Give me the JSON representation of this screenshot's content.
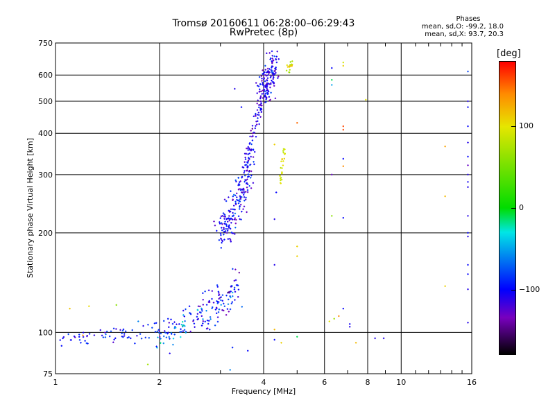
{
  "header": {
    "title_line1": "Tromsø 20160611 06:28:00–06:29:43",
    "title_line2": "RwPretec (8p)"
  },
  "stats": {
    "heading": "Phases",
    "line_o": "mean, sd,O: -99.2, 18.0",
    "line_x": "mean, sd,X:  93.7, 20.3"
  },
  "colorbar": {
    "unit": "[deg]",
    "range": [
      -180,
      180
    ],
    "ticks": [
      {
        "value": 100,
        "label": "100"
      },
      {
        "value": 0,
        "label": "0"
      },
      {
        "value": -100,
        "label": "−100"
      }
    ]
  },
  "chart_data": {
    "type": "scatter",
    "title": "Tromsø 20160611 06:28:00–06:29:43",
    "subtitle": "RwPretec (8p)",
    "xlabel": "Frequency [MHz]",
    "ylabel": "Stationary phase Virtual Height [km]",
    "x_scale": "log",
    "y_scale": "log",
    "xlim": [
      1,
      16
    ],
    "ylim": [
      75,
      750
    ],
    "x_ticks": [
      1,
      2,
      4,
      6,
      8,
      10,
      16
    ],
    "x_tick_labels": [
      "1",
      "2",
      "4",
      "6",
      "8",
      "10",
      "16"
    ],
    "x_minor_ticks": [
      3,
      5,
      7,
      9,
      11,
      12,
      13,
      14,
      15
    ],
    "y_ticks": [
      75,
      100,
      200,
      300,
      400,
      500,
      600,
      750
    ],
    "y_tick_labels": [
      "75",
      "100",
      "200",
      "300",
      "400",
      "500",
      "600",
      "750"
    ],
    "grid": true,
    "color_value": "phase [deg]",
    "segments": [
      {
        "f0": 1.0,
        "f1": 1.95,
        "h0": 95,
        "h1": 102,
        "n": 60,
        "jitter_h": 0.03,
        "jitter_f": 0.01,
        "phase_mean": -95,
        "phase_sd": 15
      },
      {
        "f0": 1.95,
        "f1": 2.6,
        "h0": 98,
        "h1": 112,
        "n": 70,
        "jitter_h": 0.05,
        "jitter_f": 0.01,
        "phase_mean": -80,
        "phase_sd": 30
      },
      {
        "f0": 2.6,
        "f1": 3.4,
        "h0": 110,
        "h1": 140,
        "n": 110,
        "jitter_h": 0.07,
        "jitter_f": 0.015,
        "phase_mean": -100,
        "phase_sd": 25
      },
      {
        "f0": 3.0,
        "f1": 3.7,
        "h0": 200,
        "h1": 330,
        "n": 200,
        "jitter_h": 0.07,
        "jitter_f": 0.02,
        "phase_mean": -105,
        "phase_sd": 18
      },
      {
        "f0": 3.55,
        "f1": 3.95,
        "h0": 330,
        "h1": 520,
        "n": 70,
        "jitter_h": 0.04,
        "jitter_f": 0.01,
        "phase_mean": -110,
        "phase_sd": 15
      },
      {
        "f0": 3.92,
        "f1": 4.3,
        "h0": 520,
        "h1": 650,
        "n": 150,
        "jitter_h": 0.06,
        "jitter_f": 0.02,
        "phase_mean": -108,
        "phase_sd": 18
      },
      {
        "f0": 4.45,
        "f1": 4.6,
        "h0": 285,
        "h1": 360,
        "n": 28,
        "jitter_h": 0.02,
        "jitter_f": 0.005,
        "phase_mean": 95,
        "phase_sd": 12
      },
      {
        "f0": 4.7,
        "f1": 4.85,
        "h0": 625,
        "h1": 655,
        "n": 16,
        "jitter_h": 0.015,
        "jitter_f": 0.008,
        "phase_mean": 100,
        "phase_sd": 25
      }
    ],
    "scattered_points": [
      {
        "x": 3.3,
        "y": 545,
        "phase": -110
      },
      {
        "x": 3.45,
        "y": 480,
        "phase": -100
      },
      {
        "x": 3.25,
        "y": 90,
        "phase": -90
      },
      {
        "x": 3.6,
        "y": 88,
        "phase": -100
      },
      {
        "x": 3.2,
        "y": 77,
        "phase": -60
      },
      {
        "x": 4.3,
        "y": 370,
        "phase": 110
      },
      {
        "x": 4.35,
        "y": 265,
        "phase": -100
      },
      {
        "x": 4.3,
        "y": 220,
        "phase": -110
      },
      {
        "x": 4.3,
        "y": 160,
        "phase": -110
      },
      {
        "x": 4.3,
        "y": 102,
        "phase": 120
      },
      {
        "x": 4.3,
        "y": 95,
        "phase": -100
      },
      {
        "x": 4.5,
        "y": 93,
        "phase": 110
      },
      {
        "x": 5.0,
        "y": 430,
        "phase": 150
      },
      {
        "x": 5.0,
        "y": 182,
        "phase": 110
      },
      {
        "x": 5.0,
        "y": 170,
        "phase": 110
      },
      {
        "x": 5.0,
        "y": 97,
        "phase": -10
      },
      {
        "x": 6.3,
        "y": 630,
        "phase": -100
      },
      {
        "x": 6.3,
        "y": 580,
        "phase": -10
      },
      {
        "x": 6.3,
        "y": 560,
        "phase": -50
      },
      {
        "x": 6.3,
        "y": 300,
        "phase": -130
      },
      {
        "x": 6.3,
        "y": 225,
        "phase": 60
      },
      {
        "x": 6.2,
        "y": 108,
        "phase": 100
      },
      {
        "x": 6.4,
        "y": 110,
        "phase": 70
      },
      {
        "x": 6.6,
        "y": 112,
        "phase": 140
      },
      {
        "x": 6.8,
        "y": 655,
        "phase": 90
      },
      {
        "x": 6.8,
        "y": 640,
        "phase": 110
      },
      {
        "x": 6.8,
        "y": 420,
        "phase": 160
      },
      {
        "x": 6.8,
        "y": 410,
        "phase": 160
      },
      {
        "x": 6.8,
        "y": 335,
        "phase": -100
      },
      {
        "x": 6.8,
        "y": 318,
        "phase": 140
      },
      {
        "x": 6.8,
        "y": 222,
        "phase": -100
      },
      {
        "x": 6.8,
        "y": 118,
        "phase": -100
      },
      {
        "x": 7.1,
        "y": 106,
        "phase": -105
      },
      {
        "x": 7.1,
        "y": 104,
        "phase": -110
      },
      {
        "x": 7.4,
        "y": 93,
        "phase": 120
      },
      {
        "x": 7.9,
        "y": 505,
        "phase": 100
      },
      {
        "x": 8.4,
        "y": 96,
        "phase": -110
      },
      {
        "x": 8.9,
        "y": 96,
        "phase": -110
      },
      {
        "x": 13.4,
        "y": 365,
        "phase": 130
      },
      {
        "x": 13.4,
        "y": 258,
        "phase": 120
      },
      {
        "x": 13.4,
        "y": 138,
        "phase": 110
      },
      {
        "x": 15.6,
        "y": 615,
        "phase": -80
      },
      {
        "x": 15.6,
        "y": 500,
        "phase": -110
      },
      {
        "x": 15.6,
        "y": 480,
        "phase": -100
      },
      {
        "x": 15.6,
        "y": 420,
        "phase": -100
      },
      {
        "x": 15.6,
        "y": 375,
        "phase": -110
      },
      {
        "x": 15.6,
        "y": 340,
        "phase": -100
      },
      {
        "x": 15.6,
        "y": 320,
        "phase": -130
      },
      {
        "x": 15.6,
        "y": 300,
        "phase": -110
      },
      {
        "x": 15.6,
        "y": 285,
        "phase": -105
      },
      {
        "x": 15.6,
        "y": 275,
        "phase": -110
      },
      {
        "x": 15.6,
        "y": 225,
        "phase": -110
      },
      {
        "x": 15.6,
        "y": 200,
        "phase": -100
      },
      {
        "x": 15.6,
        "y": 195,
        "phase": -110
      },
      {
        "x": 15.6,
        "y": 160,
        "phase": -100
      },
      {
        "x": 15.6,
        "y": 150,
        "phase": -100
      },
      {
        "x": 15.6,
        "y": 135,
        "phase": -110
      },
      {
        "x": 15.6,
        "y": 107,
        "phase": -110
      },
      {
        "x": 1.1,
        "y": 118,
        "phase": 115
      },
      {
        "x": 1.25,
        "y": 120,
        "phase": 105
      },
      {
        "x": 1.2,
        "y": 98,
        "phase": 140
      },
      {
        "x": 1.5,
        "y": 121,
        "phase": 60
      },
      {
        "x": 1.85,
        "y": 80,
        "phase": 70
      },
      {
        "x": 1.65,
        "y": 96,
        "phase": -100
      },
      {
        "x": 1.05,
        "y": 96,
        "phase": -100
      }
    ]
  }
}
